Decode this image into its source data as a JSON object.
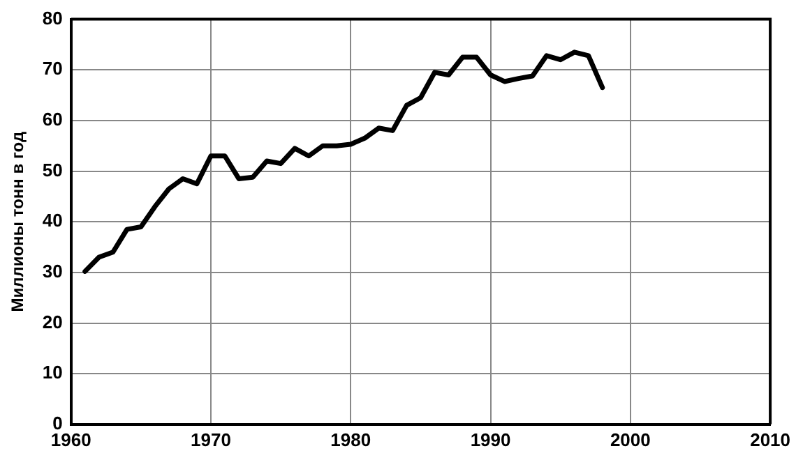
{
  "chart_data": {
    "type": "line",
    "ylabel": "Миллионы тонн в год",
    "x": [
      1961,
      1962,
      1963,
      1964,
      1965,
      1966,
      1967,
      1968,
      1969,
      1970,
      1971,
      1972,
      1973,
      1974,
      1975,
      1976,
      1977,
      1978,
      1979,
      1980,
      1981,
      1982,
      1983,
      1984,
      1985,
      1986,
      1987,
      1988,
      1989,
      1990,
      1991,
      1992,
      1993,
      1994,
      1995,
      1996,
      1997,
      1998
    ],
    "series": [
      {
        "color": "#000000",
        "values": [
          30.2,
          33,
          34,
          38.5,
          39,
          43,
          46.5,
          48.5,
          47.5,
          53,
          53,
          48.5,
          48.8,
          52,
          51.5,
          54.5,
          53,
          55,
          55,
          55.3,
          56.5,
          58.5,
          58,
          63,
          64.5,
          69.5,
          69,
          72.5,
          72.5,
          69,
          67.7,
          68.3,
          68.8,
          72.8,
          72,
          73.5,
          72.8,
          66.5
        ]
      }
    ],
    "xlim": [
      1960,
      2010
    ],
    "xticks": [
      1960,
      1970,
      1980,
      1990,
      2000,
      2010
    ],
    "ylim": [
      0,
      80
    ],
    "yticks": [
      0,
      10,
      20,
      30,
      40,
      50,
      60,
      70,
      80
    ],
    "grid": true,
    "legend": false,
    "marker": "none",
    "line_style": "solid"
  }
}
